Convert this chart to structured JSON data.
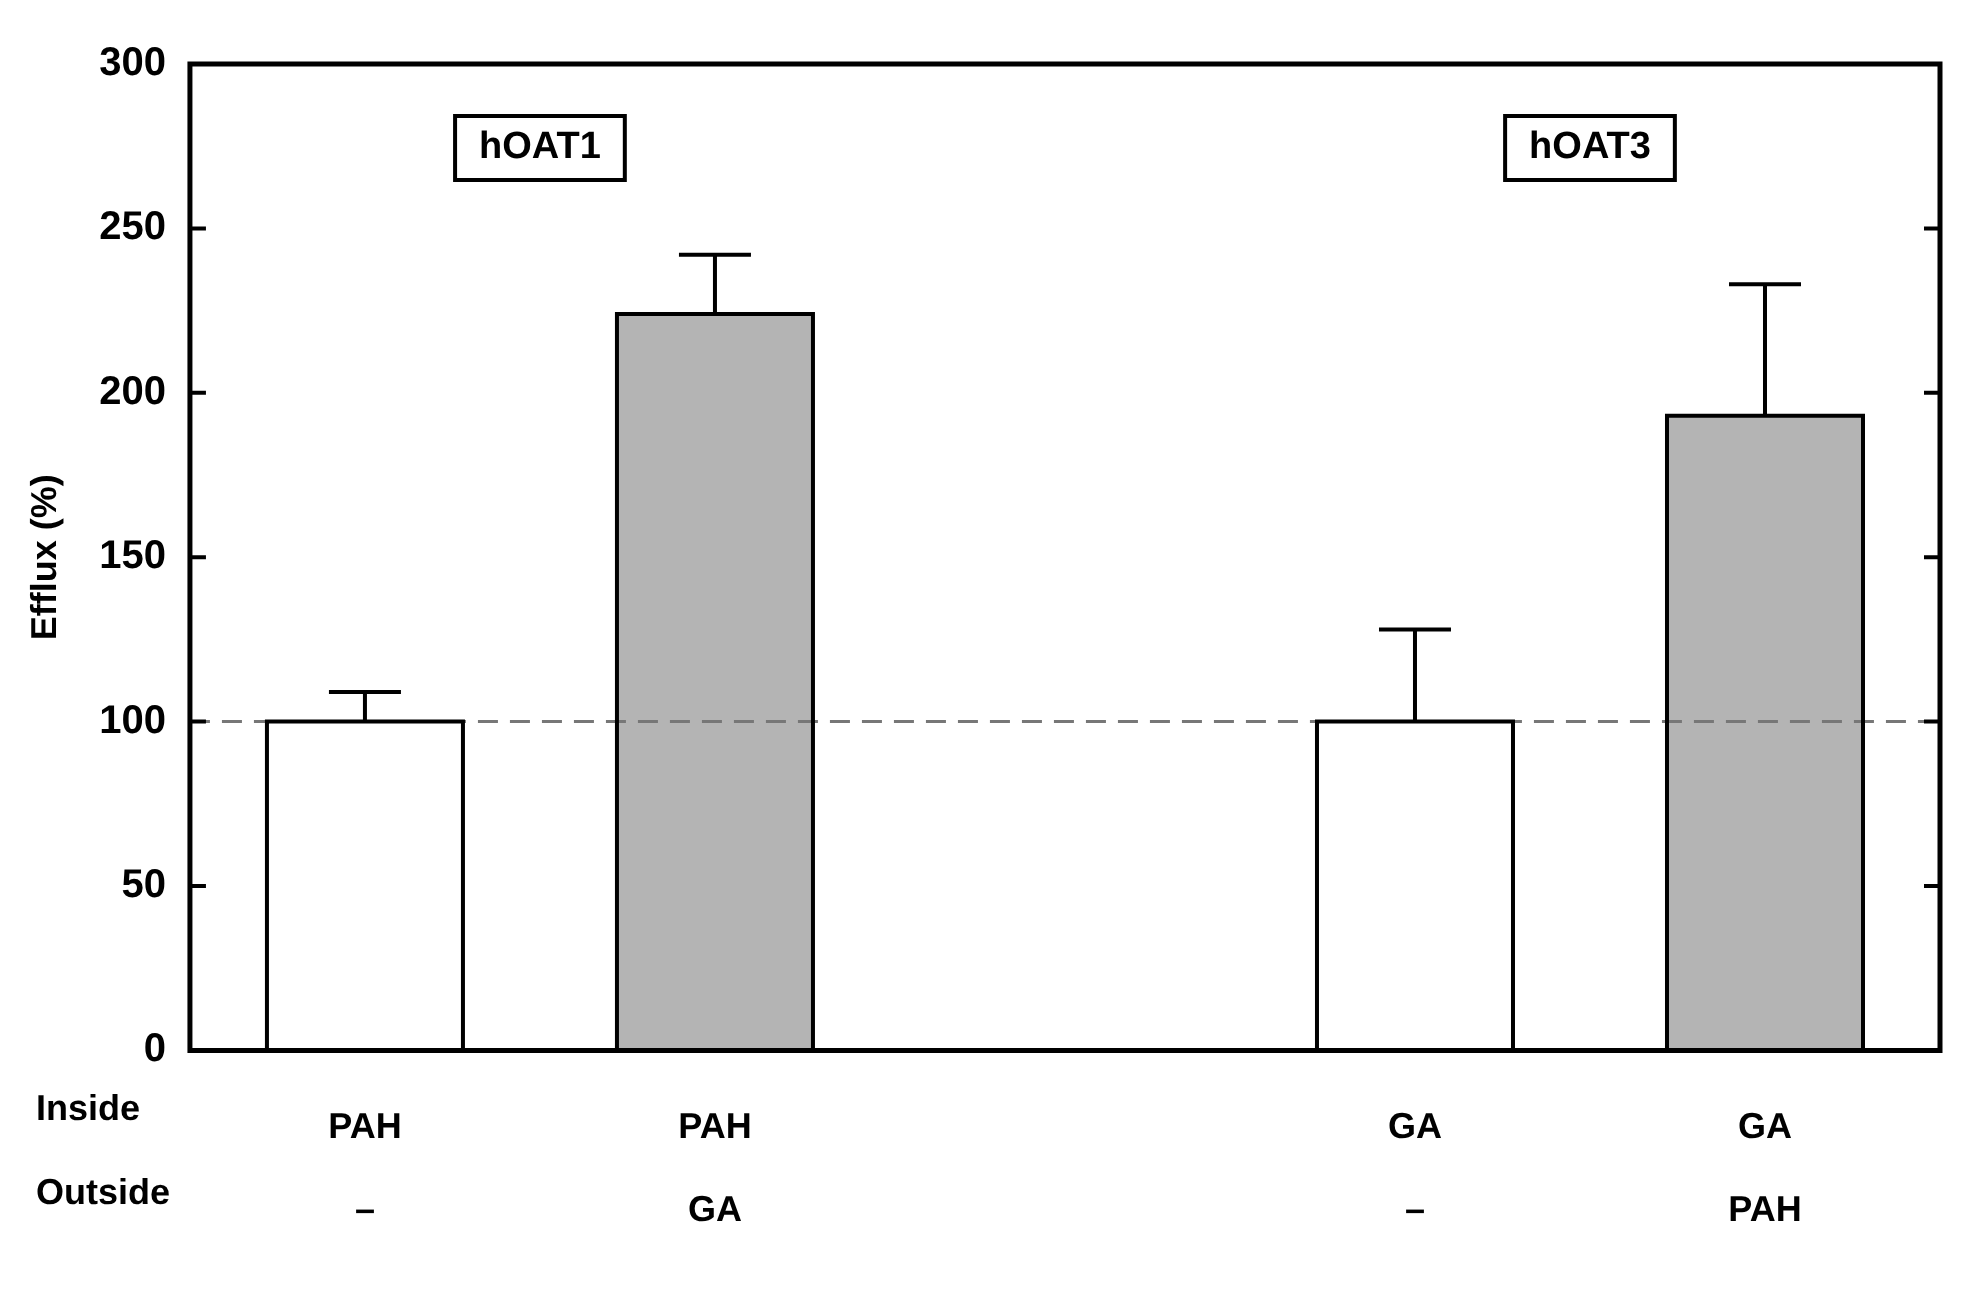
{
  "chart_data": {
    "type": "bar",
    "ylabel": "Efflux (%)",
    "categories": [
      "PAH\n–",
      "PAH\nGA",
      null,
      "GA\n–",
      "GA\nPAH"
    ],
    "series": [
      {
        "color": "#ffffff",
        "values": [
          100,
          null,
          null,
          100,
          null
        ],
        "errors": [
          9,
          null,
          null,
          28,
          null
        ]
      },
      {
        "color": "#b4b4b4",
        "values": [
          null,
          224,
          null,
          null,
          193
        ],
        "errors": [
          null,
          18,
          null,
          null,
          40
        ]
      }
    ],
    "ylim": [
      0,
      300
    ],
    "yticks": [
      0,
      50,
      100,
      150,
      200,
      250,
      300
    ],
    "grid": false,
    "legend": false,
    "ref_lines": [
      {
        "axis": "y",
        "value": 100,
        "color": "#777777",
        "line_style": "dashed"
      }
    ],
    "annotations": [
      "hOAT1",
      "hOAT3",
      "Inside",
      "Outside"
    ]
  }
}
